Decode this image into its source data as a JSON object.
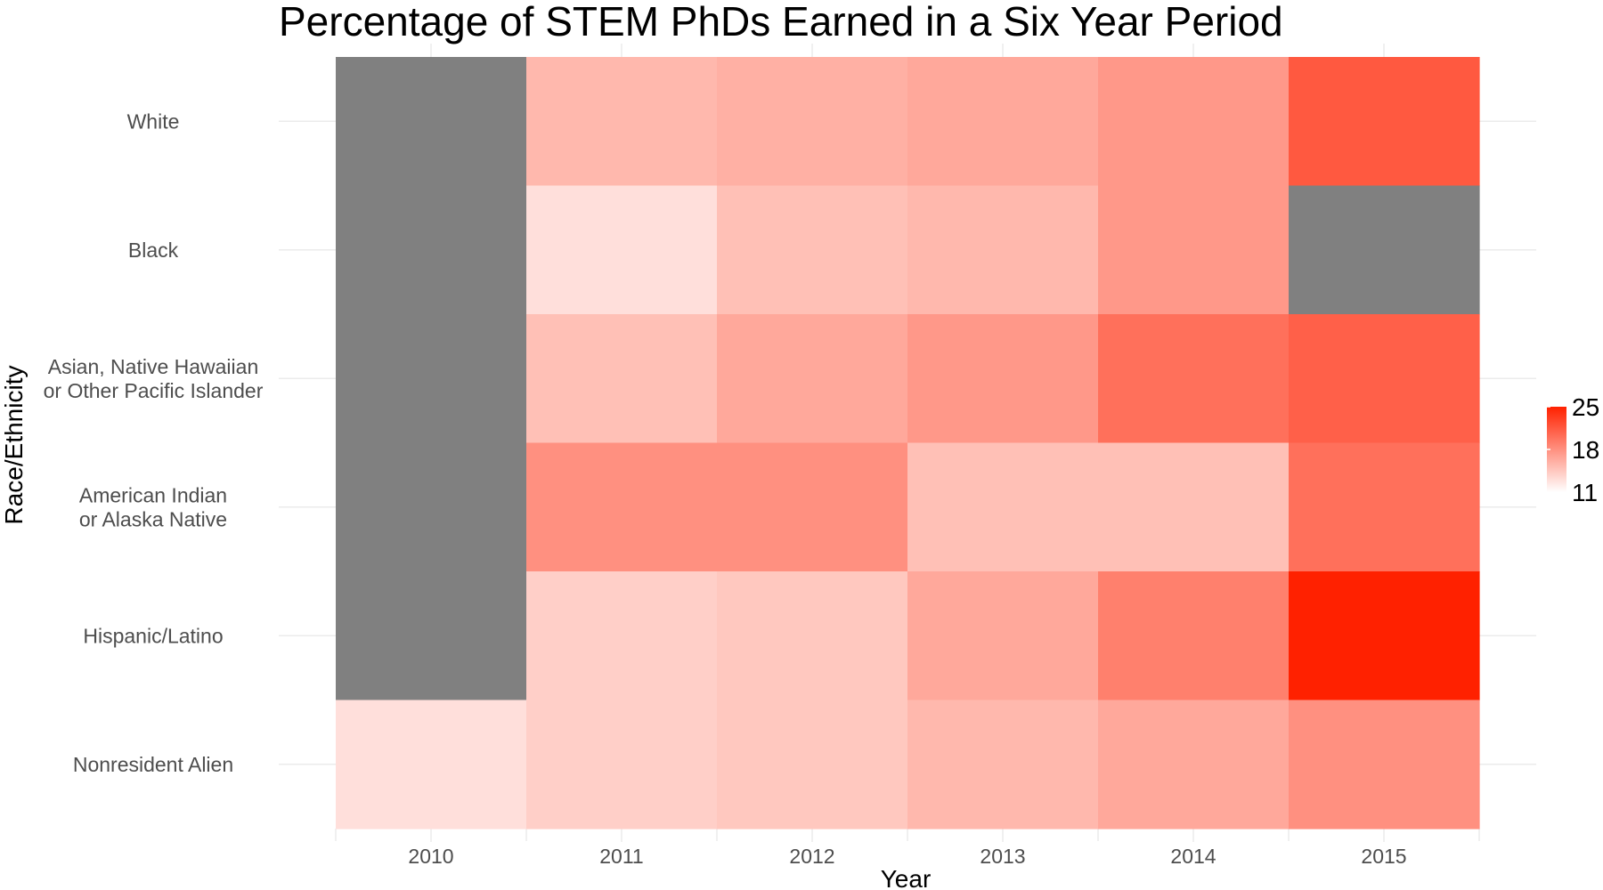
{
  "chart_data": {
    "type": "heatmap",
    "title": "Percentage of STEM PhDs Earned in a Six Year Period",
    "xlabel": "Year",
    "ylabel": "Race/Ethnicity",
    "x": [
      "2010",
      "2011",
      "2012",
      "2013",
      "2014",
      "2015"
    ],
    "y": [
      "White",
      "Black",
      "Asian, Native Hawaiian\nor Other Pacific Islander",
      "American Indian\nor Alaska Native",
      "Hispanic/Latino",
      "Nonresident Alien"
    ],
    "values": [
      [
        null,
        15.5,
        16.0,
        16.5,
        17.5,
        21.5
      ],
      [
        null,
        13.0,
        15.0,
        15.5,
        17.5,
        null
      ],
      [
        null,
        15.0,
        16.5,
        17.5,
        20.0,
        21.0
      ],
      [
        null,
        18.0,
        18.0,
        15.0,
        15.0,
        20.0
      ],
      [
        null,
        14.0,
        14.5,
        16.5,
        19.0,
        25.0
      ],
      [
        13.0,
        14.0,
        14.5,
        15.5,
        16.5,
        18.0
      ]
    ],
    "na_color": "#808080",
    "color_scale": {
      "low": "#ffffff",
      "high": "#ff2100",
      "min": 11,
      "max": 25
    },
    "legend": {
      "position": "right",
      "ticks": [
        25,
        18,
        11
      ]
    },
    "grid": true
  }
}
